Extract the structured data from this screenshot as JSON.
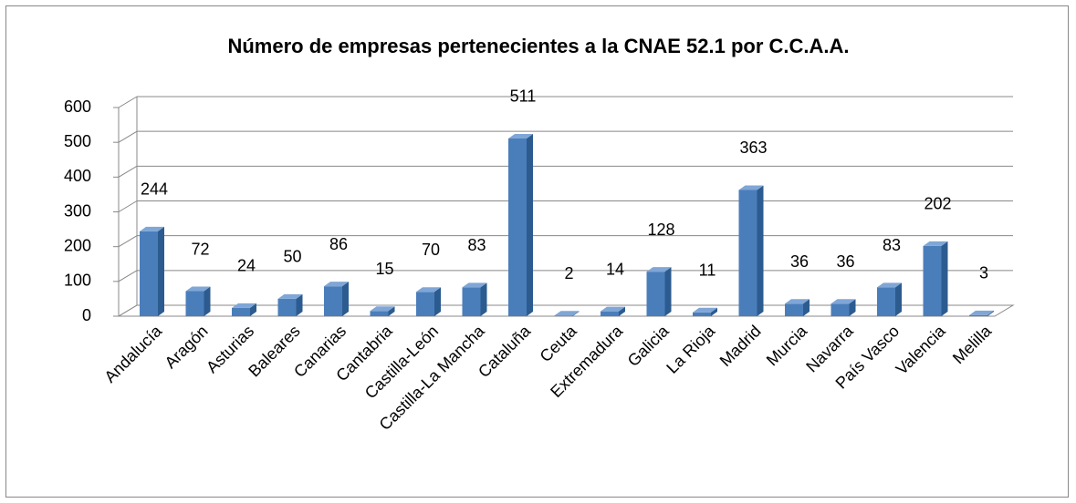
{
  "chart_data": {
    "type": "bar3d",
    "title": "Número de empresas pertenecientes a la CNAE 52.1 por C.C.A.A.",
    "categories": [
      "Andalucía",
      "Aragón",
      "Asturias",
      "Baleares",
      "Canarias",
      "Cantabria",
      "Castilla-León",
      "Castilla-La Mancha",
      "Cataluña",
      "Ceuta",
      "Extremadura",
      "Galicia",
      "La Rioja",
      "Madrid",
      "Murcia",
      "Navarra",
      "País Vasco",
      "Valencia",
      "Melilla"
    ],
    "values": [
      244,
      72,
      24,
      50,
      86,
      15,
      70,
      83,
      511,
      2,
      14,
      128,
      11,
      363,
      36,
      36,
      83,
      202,
      3
    ],
    "color": "#4a7ebb",
    "ylim": [
      0,
      600
    ],
    "yticks": [
      0,
      100,
      200,
      300,
      400,
      500,
      600
    ],
    "grid": true
  }
}
